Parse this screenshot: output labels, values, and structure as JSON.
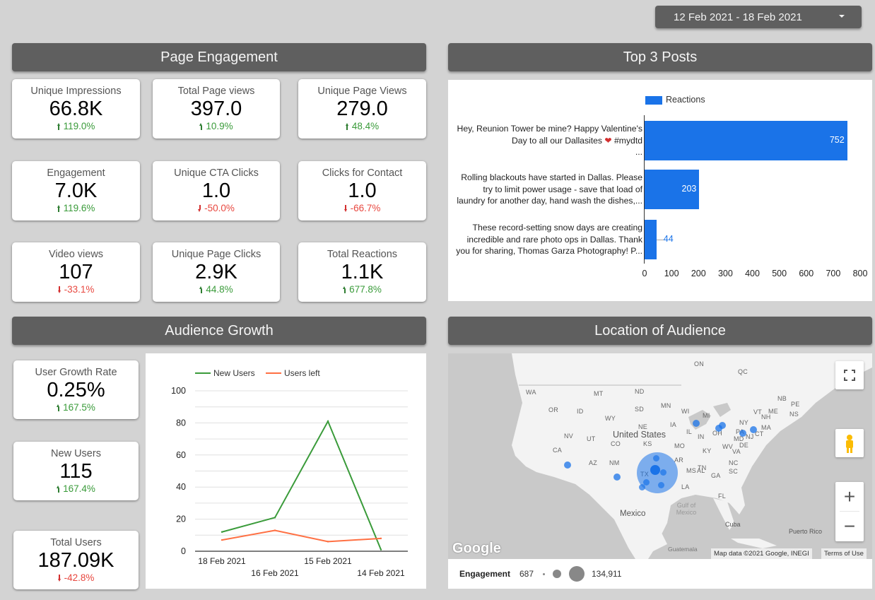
{
  "date_range": {
    "label": "12 Feb 2021 - 18 Feb 2021"
  },
  "sections": {
    "page_engagement": "Page Engagement",
    "top_posts": "Top 3 Posts",
    "audience_growth": "Audience Growth",
    "location": "Location of Audience"
  },
  "kpis": [
    {
      "label": "Unique Impressions",
      "value": "66.8K",
      "delta": "119.0%",
      "direction": "up"
    },
    {
      "label": "Total Page views",
      "value": "397.0",
      "delta": "10.9%",
      "direction": "up"
    },
    {
      "label": "Unique Page Views",
      "value": "279.0",
      "delta": "48.4%",
      "direction": "up"
    },
    {
      "label": "Engagement",
      "value": "7.0K",
      "delta": "119.6%",
      "direction": "up"
    },
    {
      "label": "Unique CTA Clicks",
      "value": "1.0",
      "delta": "-50.0%",
      "direction": "down"
    },
    {
      "label": "Clicks for Contact",
      "value": "1.0",
      "delta": "-66.7%",
      "direction": "down"
    },
    {
      "label": "Video views",
      "value": "107",
      "delta": "-33.1%",
      "direction": "down"
    },
    {
      "label": "Unique Page Clicks",
      "value": "2.9K",
      "delta": "44.8%",
      "direction": "up"
    },
    {
      "label": "Total Reactions",
      "value": "1.1K",
      "delta": "677.8%",
      "direction": "up"
    }
  ],
  "audience_kpis": [
    {
      "label": "User Growth Rate",
      "value": "0.25%",
      "delta": "167.5%",
      "direction": "up"
    },
    {
      "label": "New Users",
      "value": "115",
      "delta": "167.4%",
      "direction": "up"
    },
    {
      "label": "Total Users",
      "value": "187.09K",
      "delta": "-42.8%",
      "direction": "down"
    }
  ],
  "colors": {
    "bar": "#1a73e8",
    "new_users": "#3a9b3a",
    "users_left": "#ff7043",
    "up": "#3a9b3a",
    "down": "#e8473f",
    "header": "#5f5f5f"
  },
  "chart_data": [
    {
      "type": "bar",
      "orientation": "horizontal",
      "title": "Top 3 Posts",
      "legend": [
        "Reactions"
      ],
      "legend_position": "top",
      "categories": [
        "Hey, Reunion Tower be mine? Happy Valentine's Day to all our Dallasites ❤️ #mydtd ...",
        "Rolling blackouts have started in Dallas. Please try to limit power usage - save that load of laundry for another day, hand wash the dishes,...",
        "These record-setting snow days are creating incredible and rare photo ops in Dallas. Thank you for sharing, Thomas Garza Photography! P..."
      ],
      "category_lines": [
        [
          "Hey, Reunion Tower be mine? Happy Valentine's",
          "Day to all our Dallasites ❤ #mydtd",
          "..."
        ],
        [
          "Rolling blackouts have started in Dallas. Please",
          "try to limit power usage - save that load of",
          "laundry for another day, hand wash the dishes,..."
        ],
        [
          "These record-setting snow days are creating",
          "incredible and rare photo ops in Dallas. Thank",
          "you for sharing, Thomas Garza Photography! P..."
        ]
      ],
      "values": [
        752,
        203,
        44
      ],
      "value_labels": [
        "752",
        "203",
        "44"
      ],
      "xlim": [
        0,
        800
      ],
      "xticks": [
        "0",
        "100",
        "200",
        "300",
        "400",
        "500",
        "600",
        "700",
        "800"
      ],
      "grid": false
    },
    {
      "type": "line",
      "title": "Audience Growth",
      "x": [
        "18 Feb 2021",
        "16 Feb 2021",
        "15 Feb 2021",
        "14 Feb 2021"
      ],
      "series": [
        {
          "name": "New Users",
          "values": [
            12,
            21,
            81,
            1
          ]
        },
        {
          "name": "Users left",
          "values": [
            7,
            13,
            6,
            8
          ]
        }
      ],
      "ylim": [
        0,
        100
      ],
      "yticks": [
        "0",
        "20",
        "40",
        "60",
        "80",
        "100"
      ],
      "legend_position": "top",
      "grid": true
    }
  ],
  "map": {
    "country_labels": [
      "United States",
      "Mexico",
      "Cuba",
      "Puerto Rico",
      "Guatemala",
      "Gulf of Mexico"
    ],
    "state_labels": [
      "WA",
      "MT",
      "ND",
      "OR",
      "ID",
      "SD",
      "WY",
      "NE",
      "NV",
      "UT",
      "CO",
      "KS",
      "CA",
      "AZ",
      "NM",
      "TX",
      "MN",
      "WI",
      "IA",
      "IL",
      "MI",
      "IN",
      "OH",
      "MO",
      "KY",
      "WV",
      "VA",
      "TN",
      "NC",
      "AR",
      "MS",
      "AL",
      "GA",
      "SC",
      "LA",
      "FL",
      "NY",
      "PA",
      "MD",
      "DE",
      "NJ",
      "MA",
      "NH",
      "ME",
      "VT",
      "CT",
      "ON",
      "QC",
      "NB",
      "PE",
      "NS"
    ],
    "attribution": "Map data ©2021 Google, INEGI",
    "terms": "Terms of Use",
    "logo": "Google",
    "legend": {
      "metric": "Engagement",
      "min": "687",
      "max": "134,911"
    },
    "controls": {
      "fullscreen": "fullscreen-icon",
      "pegman": "pegman-icon",
      "zoom_in": "+",
      "zoom_out": "−"
    }
  }
}
